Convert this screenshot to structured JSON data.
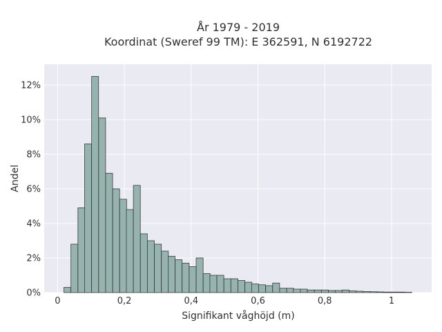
{
  "chart_data": {
    "type": "bar",
    "title": "År 1979 - 2019",
    "subtitle": "Koordinat (Sweref 99 TM): E 362591, N 6192722",
    "xlabel": "Signifikant våghöjd (m)",
    "ylabel": "Andel",
    "xlim": [
      -0.04,
      1.12
    ],
    "ylim": [
      0,
      0.132
    ],
    "xticks": [
      0,
      0.2,
      0.4,
      0.6,
      0.8,
      1
    ],
    "xtick_labels": [
      "0",
      "0,2",
      "0,4",
      "0,6",
      "0,8",
      "1"
    ],
    "yticks": [
      0,
      0.02,
      0.04,
      0.06,
      0.08,
      0.1,
      0.12
    ],
    "ytick_labels": [
      "0%",
      "2%",
      "4%",
      "6%",
      "8%",
      "10%",
      "12%"
    ],
    "grid": true,
    "background": "#eaeaf2",
    "bar_color": "#97b3b0",
    "edge_color": "#3a3a3a",
    "bin_width": 0.0208,
    "bins_start": [
      0.019,
      0.04,
      0.061,
      0.081,
      0.102,
      0.123,
      0.144,
      0.165,
      0.186,
      0.206,
      0.227,
      0.248,
      0.269,
      0.29,
      0.311,
      0.331,
      0.352,
      0.373,
      0.394,
      0.415,
      0.436,
      0.456,
      0.477,
      0.498,
      0.519,
      0.54,
      0.561,
      0.581,
      0.602,
      0.623,
      0.644,
      0.665,
      0.686,
      0.706,
      0.727,
      0.748,
      0.769,
      0.79,
      0.811,
      0.831,
      0.852,
      0.873,
      0.894,
      0.915,
      0.936,
      0.956,
      0.977,
      0.998,
      1.019,
      1.04
    ],
    "values": [
      0.003,
      0.028,
      0.049,
      0.086,
      0.125,
      0.101,
      0.069,
      0.06,
      0.054,
      0.048,
      0.062,
      0.034,
      0.03,
      0.028,
      0.024,
      0.021,
      0.019,
      0.017,
      0.015,
      0.02,
      0.011,
      0.01,
      0.01,
      0.008,
      0.008,
      0.007,
      0.006,
      0.005,
      0.0045,
      0.004,
      0.0055,
      0.0025,
      0.0025,
      0.002,
      0.002,
      0.0015,
      0.0015,
      0.0015,
      0.0012,
      0.0012,
      0.0015,
      0.001,
      0.0008,
      0.0006,
      0.0005,
      0.0004,
      0.0003,
      0.0003,
      0.0003,
      0.0002
    ]
  }
}
